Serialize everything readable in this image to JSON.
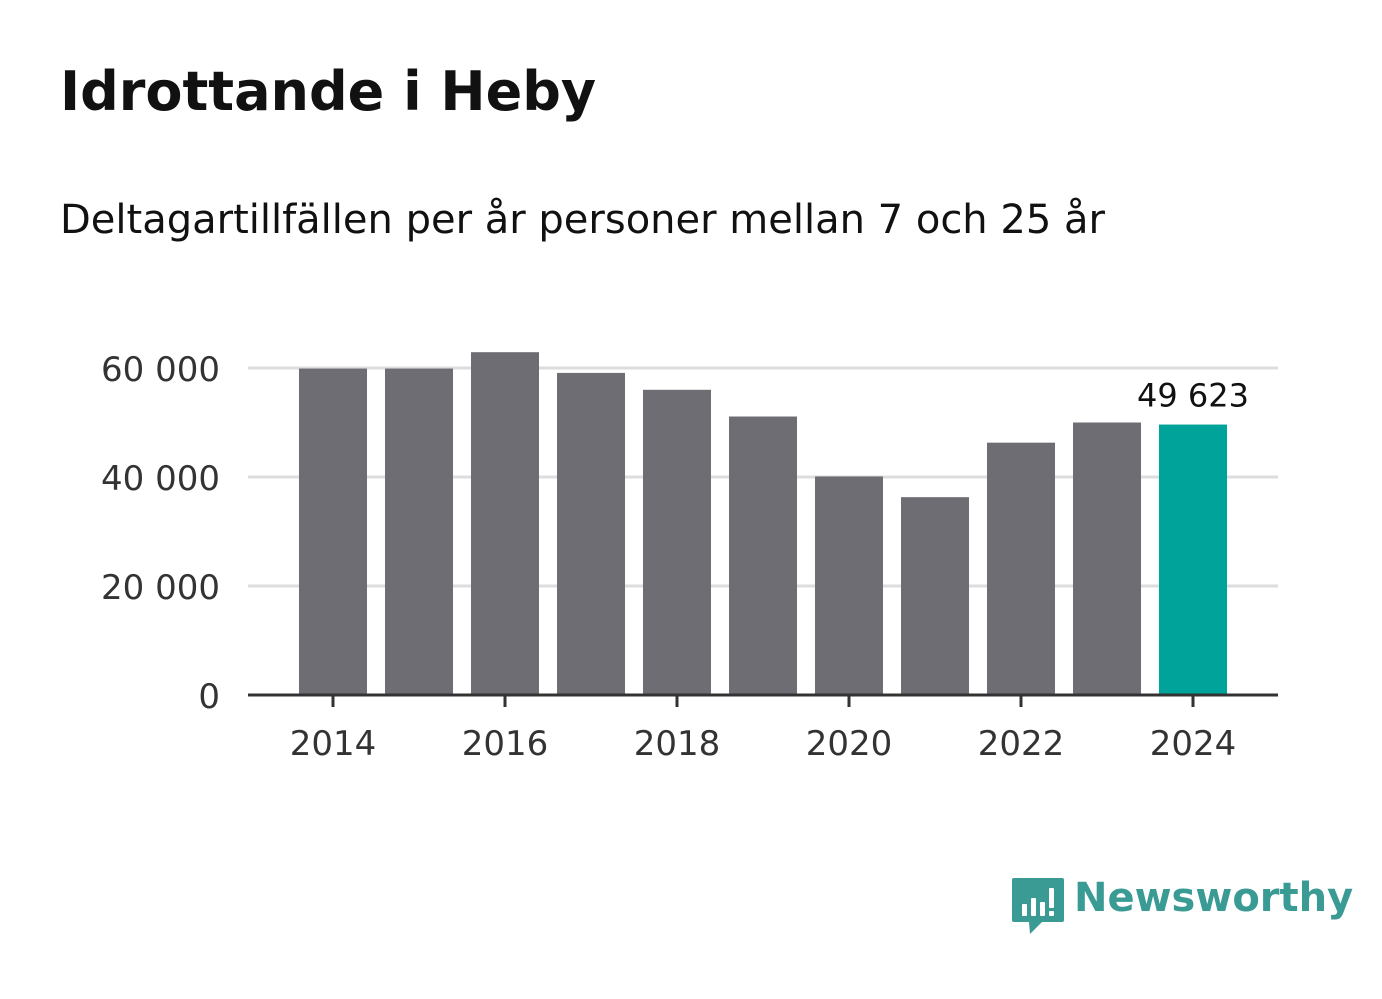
{
  "header": {
    "title": "Idrottande i Heby",
    "subtitle": "Deltagartillfällen per år personer mellan 7 och 25 år"
  },
  "chart_data": {
    "type": "bar",
    "categories": [
      "2014",
      "2015",
      "2016",
      "2017",
      "2018",
      "2019",
      "2020",
      "2021",
      "2022",
      "2023",
      "2024"
    ],
    "values": [
      59900,
      59900,
      62900,
      59100,
      56000,
      51100,
      40100,
      36300,
      46300,
      50000,
      49623
    ],
    "x_tick_labels": [
      "2014",
      "2016",
      "2018",
      "2020",
      "2022",
      "2024"
    ],
    "y_ticks": [
      0,
      20000,
      40000,
      60000
    ],
    "y_tick_labels": [
      "0",
      "20 000",
      "40 000",
      "60 000"
    ],
    "ylim": [
      0,
      60000
    ],
    "grid": true,
    "highlight_index": 10,
    "data_labels": [
      {
        "index": 10,
        "text": "49 623"
      }
    ],
    "colors": {
      "bar": "#6e6d73",
      "highlight": "#00a39a",
      "grid": "#dddddd",
      "axis": "#333333",
      "tick_text": "#333333"
    }
  },
  "brand": {
    "name": "Newsworthy",
    "icon": "newsworthy-logo-icon",
    "color": "#3a9a94"
  }
}
